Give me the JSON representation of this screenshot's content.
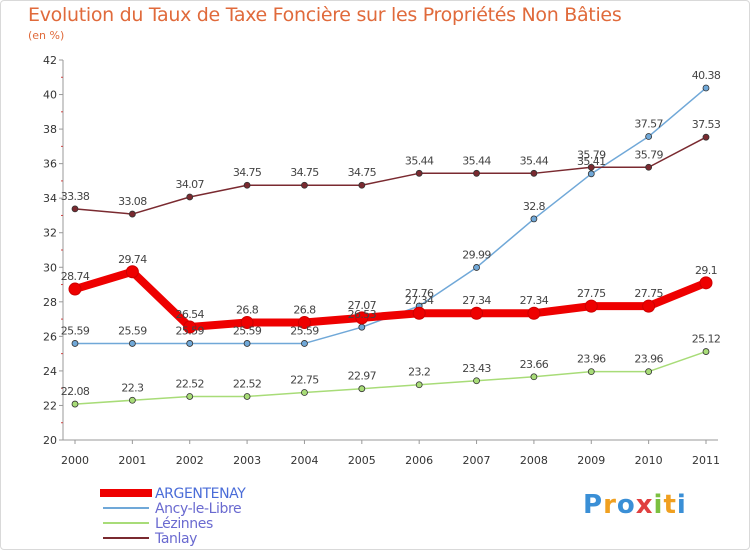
{
  "title": "Evolution du Taux de Taxe Foncière sur les Propriétés Non Bâties",
  "subtitle": "(en %)",
  "logo": {
    "letters": [
      "P",
      "r",
      "o",
      "x",
      "i",
      "t",
      "i"
    ],
    "colors": [
      "#3a8fd6",
      "#f0a020",
      "#3a8fd6",
      "#e04040",
      "#7cc040",
      "#f0a020",
      "#3a8fd6"
    ]
  },
  "chart_data": {
    "type": "line",
    "x": [
      "2000",
      "2001",
      "2002",
      "2003",
      "2004",
      "2005",
      "2006",
      "2007",
      "2008",
      "2009",
      "2010",
      "2011"
    ],
    "ylim": [
      20,
      42
    ],
    "yticks": [
      20,
      22,
      24,
      26,
      28,
      30,
      32,
      34,
      36,
      38,
      40,
      42
    ],
    "grid": "none",
    "legend_position": "bottom-left",
    "series": [
      {
        "name": "ARGENTENAY",
        "color": "#ee0000",
        "values": [
          28.74,
          29.74,
          26.54,
          26.8,
          26.8,
          27.07,
          27.34,
          27.34,
          27.34,
          27.75,
          27.75,
          29.1
        ],
        "labels": [
          "28.74",
          "29.74",
          "26.54",
          "26.8",
          "26.8",
          "27.07",
          "27.34",
          "27.34",
          "27.34",
          "27.75",
          "27.75",
          "29.1"
        ]
      },
      {
        "name": "Ancy-le-Libre",
        "color": "#70a8d8",
        "values": [
          25.59,
          25.59,
          25.59,
          25.59,
          25.59,
          26.53,
          27.76,
          29.99,
          32.8,
          35.41,
          37.57,
          40.38
        ],
        "labels": [
          "25.59",
          "25.59",
          "25.59",
          "25.59",
          "25.59",
          "26.53",
          "27.76",
          "29.99",
          "32.8",
          "35.41",
          "37.57",
          "40.38"
        ]
      },
      {
        "name": "Lézinnes",
        "color": "#a8dc78",
        "values": [
          22.08,
          22.3,
          22.52,
          22.52,
          22.75,
          22.97,
          23.2,
          23.43,
          23.66,
          23.96,
          23.96,
          25.12
        ],
        "labels": [
          "22.08",
          "22.3",
          "22.52",
          "22.52",
          "22.75",
          "22.97",
          "23.2",
          "23.43",
          "23.66",
          "23.96",
          "23.96",
          "25.12"
        ]
      },
      {
        "name": "Tanlay",
        "color": "#7a2a30",
        "values": [
          33.38,
          33.08,
          34.07,
          34.75,
          34.75,
          34.75,
          35.44,
          35.44,
          35.44,
          35.79,
          35.79,
          37.53
        ],
        "labels": [
          "33.38",
          "33.08",
          "34.07",
          "34.75",
          "34.75",
          "34.75",
          "35.44",
          "35.44",
          "35.44",
          "35.79",
          "35.79",
          "37.53"
        ]
      }
    ]
  }
}
